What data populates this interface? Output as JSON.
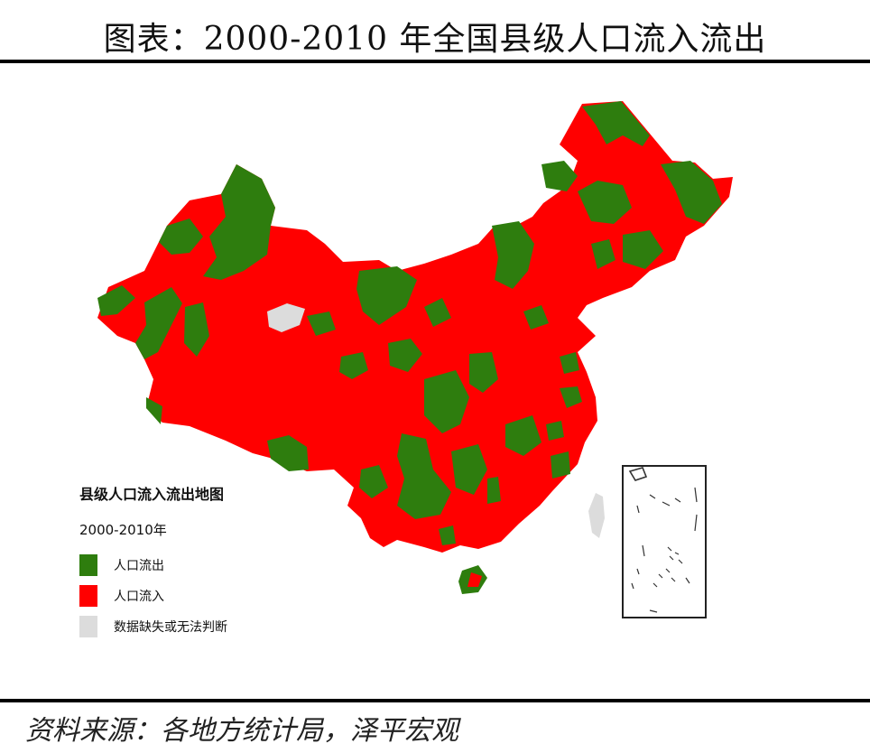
{
  "title": "图表：2000-2010 年全国县级人口流入流出",
  "source": "资料来源：各地方统计局，泽平宏观",
  "legend": {
    "title": "县级人口流入流出地图",
    "period": "2000-2010年",
    "items": [
      {
        "label": "人口流出",
        "color": "#2e7d0e"
      },
      {
        "label": "人口流入",
        "color": "#ff0000"
      },
      {
        "label": "数据缺失或无法判断",
        "color": "#dcdcdc"
      }
    ]
  },
  "colors": {
    "outflow": "#2e7d0e",
    "inflow": "#ff0000",
    "missing": "#dcdcdc"
  }
}
